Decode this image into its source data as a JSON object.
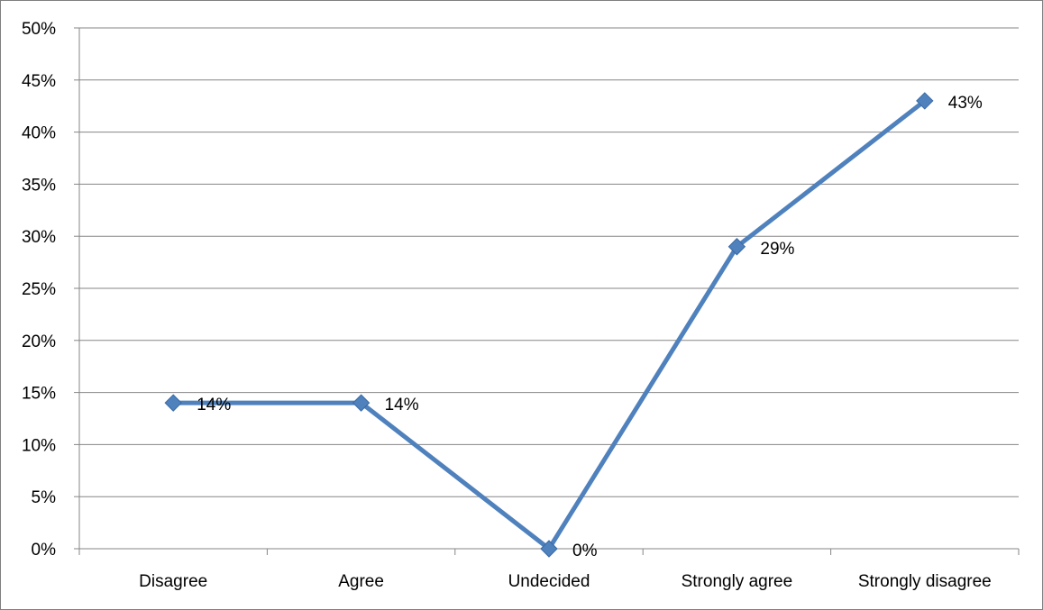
{
  "chart_data": {
    "type": "line",
    "categories": [
      "Disagree",
      "Agree",
      "Undecided",
      "Strongly agree",
      "Strongly disagree"
    ],
    "values": [
      14,
      14,
      0,
      29,
      43
    ],
    "data_labels": [
      "14%",
      "14%",
      "0%",
      "29%",
      "43%"
    ],
    "y_ticks": [
      "0%",
      "5%",
      "10%",
      "15%",
      "20%",
      "25%",
      "30%",
      "35%",
      "40%",
      "45%",
      "50%"
    ],
    "ylim": [
      0,
      50
    ],
    "y_unit": "%",
    "grid": true,
    "legend": "none",
    "marker": "diamond",
    "line_color": "#4f81bd",
    "grid_color": "#868686"
  }
}
